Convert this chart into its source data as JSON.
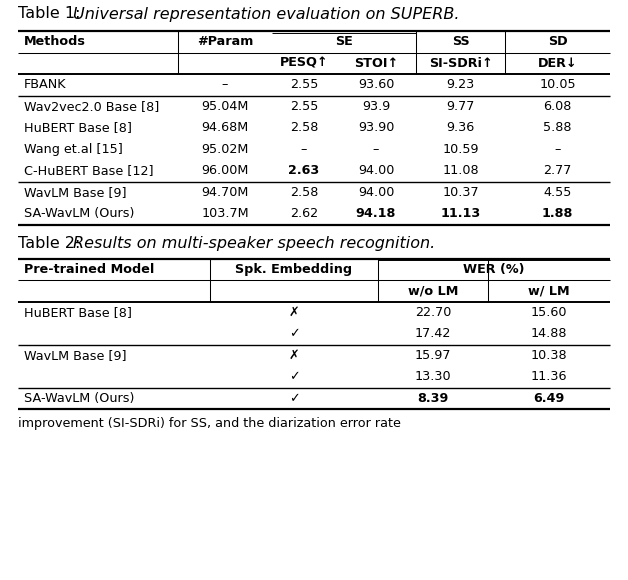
{
  "table1_title": "Table 1: ",
  "table1_title_italic": "Universal representation evaluation on SUPERB.",
  "table2_title": "Table 2: ",
  "table2_title_italic": "Results on multi-speaker speech recognition.",
  "table1_rows": [
    [
      "FBANK",
      "–",
      "2.55",
      "93.60",
      "9.23",
      "10.05"
    ],
    [
      "Wav2vec2.0 Base [8]",
      "95.04M",
      "2.55",
      "93.9",
      "9.77",
      "6.08"
    ],
    [
      "HuBERT Base [8]",
      "94.68M",
      "2.58",
      "93.90",
      "9.36",
      "5.88"
    ],
    [
      "Wang et.al [15]",
      "95.02M",
      "–",
      "–",
      "10.59",
      "–"
    ],
    [
      "C-HuBERT Base [12]",
      "96.00M",
      "2.63",
      "94.00",
      "11.08",
      "2.77"
    ],
    [
      "WavLM Base [9]",
      "94.70M",
      "2.58",
      "94.00",
      "10.37",
      "4.55"
    ],
    [
      "SA-WavLM (Ours)",
      "103.7M",
      "2.62",
      "94.18",
      "11.13",
      "1.88"
    ]
  ],
  "table1_bold": [
    [
      4,
      2
    ],
    [
      6,
      3
    ],
    [
      6,
      4
    ],
    [
      6,
      5
    ]
  ],
  "table1_group_sep_after": [
    0,
    4
  ],
  "table2_rows": [
    [
      "HuBERT Base [8]",
      "✗",
      "22.70",
      "15.60"
    ],
    [
      "",
      "✓",
      "17.42",
      "14.88"
    ],
    [
      "WavLM Base [9]",
      "✗",
      "15.97",
      "10.38"
    ],
    [
      "",
      "✓",
      "13.30",
      "11.36"
    ],
    [
      "SA-WavLM (Ours)",
      "✓",
      "8.39",
      "6.49"
    ]
  ],
  "table2_bold": [
    [
      4,
      2
    ],
    [
      4,
      3
    ]
  ],
  "table2_group_sep_after": [
    1,
    3
  ],
  "footer_text": "improvement (SI-SDRi) for SS, and the diarization error rate",
  "bg_color": "#ffffff",
  "text_color": "#000000"
}
